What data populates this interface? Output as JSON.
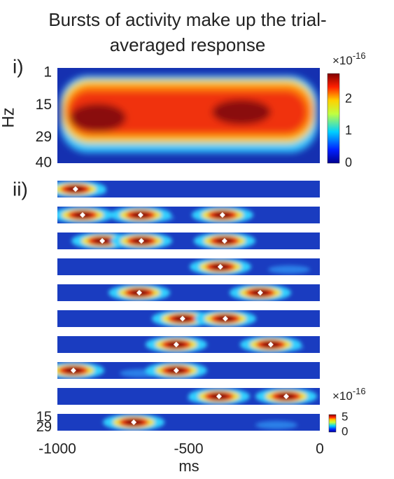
{
  "chart_data": [
    {
      "type": "heatmap",
      "title": [
        "Bursts of activity make up the trial-",
        "averaged response"
      ],
      "panel_label": "i)",
      "y_label": "Hz",
      "ylim": [
        1,
        40
      ],
      "yticks": [
        1,
        15,
        29,
        40
      ],
      "colorbar": {
        "lim": [
          0,
          2.8
        ],
        "ticks": [
          0,
          1,
          2
        ],
        "multiplier": "×10",
        "exponent": "-16"
      }
    },
    {
      "type": "burst-raster",
      "panel_label": "ii)",
      "x_label": "ms",
      "xlim": [
        -1000,
        0
      ],
      "xticks": [
        -1000,
        -500,
        0
      ],
      "ylim": [
        1,
        40
      ],
      "yticks": [
        15,
        29
      ],
      "colorbar": {
        "lim": [
          0,
          6
        ],
        "ticks": [
          0,
          5
        ],
        "multiplier": "×10",
        "exponent": "-16"
      },
      "trials": [
        {
          "bursts": [
            -931
          ]
        },
        {
          "bursts": [
            -904,
            -683,
            -371
          ]
        },
        {
          "bursts": [
            -829,
            -680,
            -363
          ]
        },
        {
          "bursts": [
            -379
          ]
        },
        {
          "bursts": [
            -688,
            -227
          ]
        },
        {
          "bursts": [
            -523,
            -360
          ]
        },
        {
          "bursts": [
            -547,
            -187
          ]
        },
        {
          "bursts": [
            -939,
            -547
          ]
        },
        {
          "bursts": [
            -384,
            -128
          ]
        },
        {
          "bursts": [
            -709
          ]
        }
      ]
    }
  ]
}
